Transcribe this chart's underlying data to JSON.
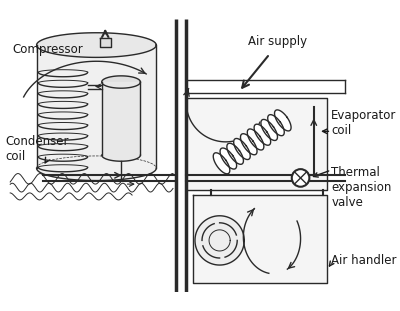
{
  "background_color": "#ffffff",
  "line_color": "#2a2a2a",
  "label_color": "#1a1a1a",
  "labels": {
    "compressor": "Compressor",
    "condenser_coil": "Condenser\ncoil",
    "air_supply": "Air supply",
    "evaporator_coil": "Evaporator\ncoil",
    "thermal_expansion": "Thermal\nexpansion\nvalve",
    "air_handler": "Air handler"
  },
  "figsize": [
    4.0,
    3.11
  ],
  "dpi": 100
}
